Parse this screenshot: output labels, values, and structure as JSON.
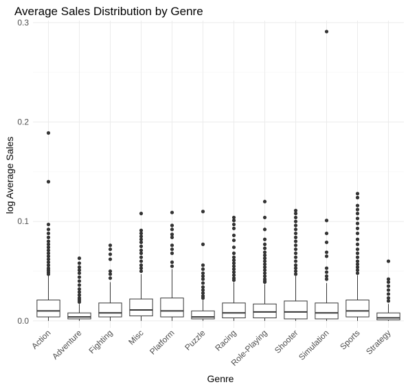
{
  "chart_data": {
    "type": "boxplot",
    "title": "Average Sales Distribution by Genre",
    "xlabel": "Genre",
    "ylabel": "log Average Sales",
    "ylim": [
      -0.007,
      0.302
    ],
    "yticks": [
      0.0,
      0.1,
      0.2,
      0.3
    ],
    "ytick_labels": [
      "0.0",
      "0.1",
      "0.2",
      "0.3"
    ],
    "grid": true,
    "categories": [
      "Action",
      "Adventure",
      "Fighting",
      "Misc",
      "Platform",
      "Puzzle",
      "Racing",
      "Role-Playing",
      "Shooter",
      "Simulation",
      "Sports",
      "Strategy"
    ],
    "boxes": [
      {
        "genre": "Action",
        "q1": 0.004,
        "median": 0.01,
        "q3": 0.021,
        "whisker_low": 0.0,
        "whisker_high": 0.046,
        "outliers": [
          0.189,
          0.14,
          0.097,
          0.092,
          0.088,
          0.084,
          0.08,
          0.077,
          0.074,
          0.071,
          0.068,
          0.065,
          0.062,
          0.059,
          0.056,
          0.053,
          0.051,
          0.049,
          0.047
        ]
      },
      {
        "genre": "Adventure",
        "q1": 0.002,
        "median": 0.004,
        "q3": 0.008,
        "whisker_low": 0.0,
        "whisker_high": 0.017,
        "outliers": [
          0.063,
          0.058,
          0.054,
          0.051,
          0.048,
          0.044,
          0.04,
          0.036,
          0.032,
          0.029,
          0.026,
          0.023,
          0.021,
          0.019
        ]
      },
      {
        "genre": "Fighting",
        "q1": 0.004,
        "median": 0.008,
        "q3": 0.018,
        "whisker_low": 0.0,
        "whisker_high": 0.039,
        "outliers": [
          0.076,
          0.072,
          0.067,
          0.062,
          0.05,
          0.047,
          0.043
        ]
      },
      {
        "genre": "Misc",
        "q1": 0.005,
        "median": 0.011,
        "q3": 0.022,
        "whisker_low": 0.0,
        "whisker_high": 0.047,
        "outliers": [
          0.108,
          0.091,
          0.088,
          0.085,
          0.082,
          0.079,
          0.075,
          0.071,
          0.068,
          0.064,
          0.06,
          0.056,
          0.053,
          0.05
        ]
      },
      {
        "genre": "Platform",
        "q1": 0.004,
        "median": 0.01,
        "q3": 0.023,
        "whisker_low": 0.0,
        "whisker_high": 0.052,
        "outliers": [
          0.109,
          0.096,
          0.092,
          0.087,
          0.084,
          0.076,
          0.072,
          0.068,
          0.059,
          0.055
        ]
      },
      {
        "genre": "Puzzle",
        "q1": 0.002,
        "median": 0.004,
        "q3": 0.01,
        "whisker_low": 0.0,
        "whisker_high": 0.021,
        "outliers": [
          0.11,
          0.077,
          0.056,
          0.052,
          0.048,
          0.045,
          0.042,
          0.038,
          0.034,
          0.031,
          0.028,
          0.025,
          0.023
        ]
      },
      {
        "genre": "Racing",
        "q1": 0.003,
        "median": 0.008,
        "q3": 0.018,
        "whisker_low": 0.0,
        "whisker_high": 0.039,
        "outliers": [
          0.104,
          0.101,
          0.097,
          0.093,
          0.086,
          0.081,
          0.074,
          0.068,
          0.064,
          0.061,
          0.058,
          0.055,
          0.052,
          0.049,
          0.046,
          0.043,
          0.041
        ]
      },
      {
        "genre": "Role-Playing",
        "q1": 0.003,
        "median": 0.009,
        "q3": 0.017,
        "whisker_low": 0.0,
        "whisker_high": 0.037,
        "outliers": [
          0.12,
          0.104,
          0.092,
          0.082,
          0.077,
          0.073,
          0.069,
          0.066,
          0.063,
          0.06,
          0.057,
          0.054,
          0.051,
          0.048,
          0.045,
          0.042,
          0.04,
          0.039
        ]
      },
      {
        "genre": "Shooter",
        "q1": 0.002,
        "median": 0.009,
        "q3": 0.02,
        "whisker_low": 0.0,
        "whisker_high": 0.045,
        "outliers": [
          0.111,
          0.108,
          0.104,
          0.1,
          0.096,
          0.092,
          0.088,
          0.084,
          0.08,
          0.076,
          0.072,
          0.068,
          0.064,
          0.06,
          0.056,
          0.053,
          0.05,
          0.047
        ]
      },
      {
        "genre": "Simulation",
        "q1": 0.002,
        "median": 0.008,
        "q3": 0.018,
        "whisker_low": 0.0,
        "whisker_high": 0.038,
        "outliers": [
          0.291,
          0.101,
          0.088,
          0.079,
          0.069,
          0.065,
          0.053,
          0.049,
          0.045,
          0.042
        ]
      },
      {
        "genre": "Sports",
        "q1": 0.004,
        "median": 0.01,
        "q3": 0.021,
        "whisker_low": 0.0,
        "whisker_high": 0.046,
        "outliers": [
          0.128,
          0.124,
          0.116,
          0.112,
          0.108,
          0.103,
          0.098,
          0.093,
          0.088,
          0.082,
          0.077,
          0.072,
          0.068,
          0.064,
          0.06,
          0.057,
          0.054,
          0.051,
          0.048
        ]
      },
      {
        "genre": "Strategy",
        "q1": 0.001,
        "median": 0.003,
        "q3": 0.008,
        "whisker_low": 0.0,
        "whisker_high": 0.017,
        "outliers": [
          0.06,
          0.042,
          0.039,
          0.035,
          0.031,
          0.027,
          0.023,
          0.02
        ]
      }
    ]
  }
}
